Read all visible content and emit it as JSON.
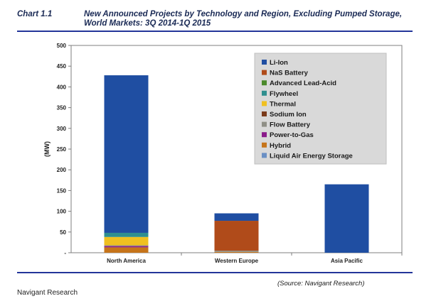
{
  "header": {
    "chart_label": "Chart 1.1",
    "title": "New Announced Projects by Technology and Region, Excluding Pumped Storage, World Markets: 3Q 2014-1Q 2015",
    "source": "(Source: Navigant Research)"
  },
  "footer": {
    "text": "Navigant Research"
  },
  "chart_data": {
    "type": "bar",
    "stacked": true,
    "title": "New Announced Projects by Technology and Region, Excluding Pumped Storage, World Markets: 3Q 2014-1Q 2015",
    "xlabel": "",
    "ylabel": "(MW)",
    "ylim": [
      0,
      500
    ],
    "yticks": [
      0,
      50,
      100,
      150,
      200,
      250,
      300,
      350,
      400,
      450,
      500
    ],
    "ytick_labels": [
      "-",
      "50",
      "100",
      "150",
      "200",
      "250",
      "300",
      "350",
      "400",
      "450",
      "500"
    ],
    "grid": false,
    "legend_position": "top-right",
    "categories": [
      "North America",
      "Western Europe",
      "Asia Pacific"
    ],
    "series": [
      {
        "name": "Li-Ion",
        "color": "#1f4ea2",
        "values": [
          380,
          18,
          165
        ]
      },
      {
        "name": "NaS Battery",
        "color": "#b04b1a",
        "values": [
          0,
          72,
          0
        ]
      },
      {
        "name": "Advanced Lead-Acid",
        "color": "#4b8a2b",
        "values": [
          0,
          0,
          0
        ]
      },
      {
        "name": "Flywheel",
        "color": "#2f8f8f",
        "values": [
          10,
          0,
          0
        ]
      },
      {
        "name": "Thermal",
        "color": "#f0c020",
        "values": [
          20,
          0,
          0
        ]
      },
      {
        "name": "Sodium Ion",
        "color": "#7a3a1a",
        "values": [
          0,
          0,
          0
        ]
      },
      {
        "name": "Flow Battery",
        "color": "#8f8f86",
        "values": [
          2,
          3,
          0
        ]
      },
      {
        "name": "Power-to-Gas",
        "color": "#8a1a8a",
        "values": [
          3,
          0,
          0
        ]
      },
      {
        "name": "Hybrid",
        "color": "#c6741a",
        "values": [
          13,
          2,
          0
        ]
      },
      {
        "name": "Liquid Air Energy Storage",
        "color": "#6a8fc4",
        "values": [
          0,
          0,
          0
        ]
      }
    ],
    "stack_order_bottom_to_top": [
      "Hybrid",
      "Power-to-Gas",
      "Flow Battery",
      "Thermal",
      "Flywheel",
      "NaS Battery",
      "Li-Ion"
    ]
  }
}
